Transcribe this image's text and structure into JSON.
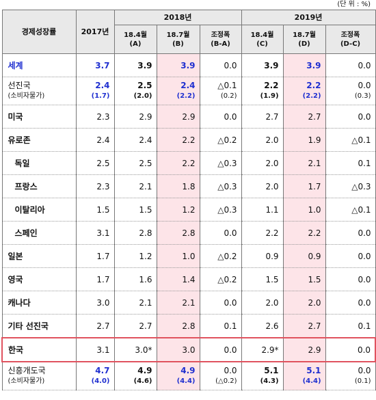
{
  "unit": "(단 위 : %)",
  "header": {
    "title": "경제성장률",
    "y2017": "2017년",
    "y2018": "2018년",
    "y2019": "2019년",
    "sub": [
      [
        "18.4월",
        "(A)"
      ],
      [
        "18.7월",
        "(B)"
      ],
      [
        "조정폭",
        "(B-A)"
      ],
      [
        "18.4월",
        "(C)"
      ],
      [
        "18.7월",
        "(D)"
      ],
      [
        "조정폭",
        "(D-C)"
      ]
    ]
  },
  "table": {
    "rows": [
      {
        "name": "세계",
        "cells": [
          "3.7",
          "3.9",
          "3.9",
          "0.0",
          "3.9",
          "3.9",
          "0.0"
        ]
      },
      {
        "name": "선진국",
        "name_sub": "(소비자물가)",
        "cells": [
          "2.4",
          "2.5",
          "2.4",
          "△0.1",
          "2.2",
          "2.2",
          "0.0"
        ],
        "cells_sub": [
          "(1.7)",
          "(2.0)",
          "(2.2)",
          "(0.2)",
          "(1.9)",
          "(2.2)",
          "(0.3)"
        ]
      },
      {
        "name": "미국",
        "cells": [
          "2.3",
          "2.9",
          "2.9",
          "0.0",
          "2.7",
          "2.7",
          "0.0"
        ]
      },
      {
        "name": "유로존",
        "cells": [
          "2.4",
          "2.4",
          "2.2",
          "△0.2",
          "2.0",
          "1.9",
          "△0.1"
        ]
      },
      {
        "name": "독일",
        "cells": [
          "2.5",
          "2.5",
          "2.2",
          "△0.3",
          "2.0",
          "2.1",
          "0.1"
        ]
      },
      {
        "name": "프랑스",
        "cells": [
          "2.3",
          "2.1",
          "1.8",
          "△0.3",
          "2.0",
          "1.7",
          "△0.3"
        ]
      },
      {
        "name": "이탈리아",
        "cells": [
          "1.5",
          "1.5",
          "1.2",
          "△0.3",
          "1.1",
          "1.0",
          "△0.1"
        ]
      },
      {
        "name": "스페인",
        "cells": [
          "3.1",
          "2.8",
          "2.8",
          "0.0",
          "2.2",
          "2.2",
          "0.0"
        ]
      },
      {
        "name": "일본",
        "cells": [
          "1.7",
          "1.2",
          "1.0",
          "△0.2",
          "0.9",
          "0.9",
          "0.0"
        ]
      },
      {
        "name": "영국",
        "cells": [
          "1.7",
          "1.6",
          "1.4",
          "△0.2",
          "1.5",
          "1.5",
          "0.0"
        ]
      },
      {
        "name": "캐나다",
        "cells": [
          "3.0",
          "2.1",
          "2.1",
          "0.0",
          "2.0",
          "2.0",
          "0.0"
        ]
      },
      {
        "name": "기타 선진국",
        "cells": [
          "2.7",
          "2.7",
          "2.8",
          "0.1",
          "2.6",
          "2.7",
          "0.1"
        ]
      },
      {
        "name": "한국",
        "cells": [
          "3.1",
          "3.0*",
          "3.0",
          "0.0",
          "2.9*",
          "2.9",
          "0.0"
        ]
      },
      {
        "name": "신흥개도국",
        "name_sub": "(소비자물가)",
        "cells": [
          "4.7",
          "4.9",
          "4.9",
          "0.0",
          "5.1",
          "5.1",
          "0.0"
        ],
        "cells_sub": [
          "(4.0)",
          "(4.6)",
          "(4.4)",
          "(△0.2)",
          "(4.3)",
          "(4.4)",
          "(0.1)"
        ]
      }
    ]
  }
}
